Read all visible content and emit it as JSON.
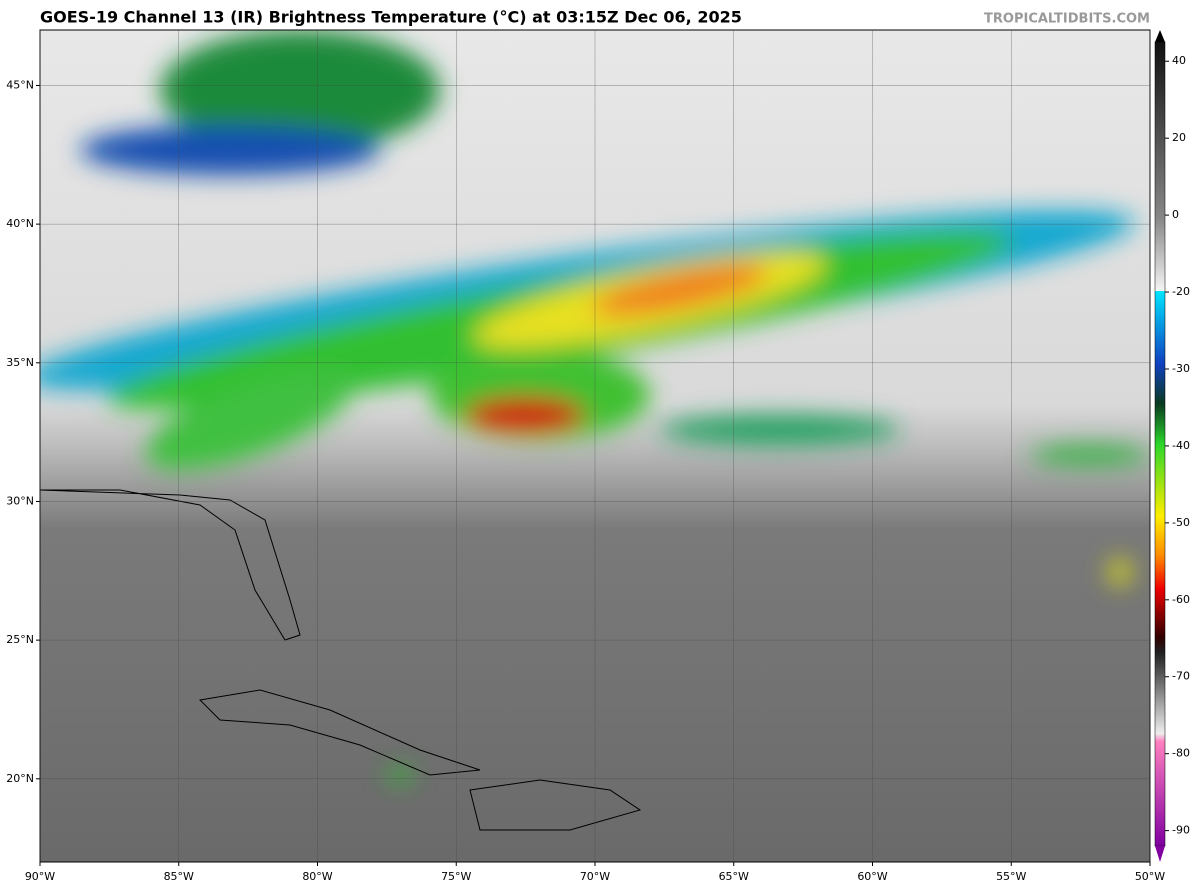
{
  "title": "GOES-19 Channel 13 (IR) Brightness Temperature (°C) at 03:15Z Dec 06, 2025",
  "watermark": "TROPICALTIDBITS.COM",
  "map": {
    "xlim": [
      -90,
      -50
    ],
    "ylim": [
      17,
      47
    ],
    "xticks": [
      {
        "value": -90,
        "label": "90°W"
      },
      {
        "value": -85,
        "label": "85°W"
      },
      {
        "value": -80,
        "label": "80°W"
      },
      {
        "value": -75,
        "label": "75°W"
      },
      {
        "value": -70,
        "label": "70°W"
      },
      {
        "value": -65,
        "label": "65°W"
      },
      {
        "value": -60,
        "label": "60°W"
      },
      {
        "value": -55,
        "label": "55°W"
      },
      {
        "value": -50,
        "label": "50°W"
      }
    ],
    "yticks": [
      {
        "value": 20,
        "label": "20°N"
      },
      {
        "value": 25,
        "label": "25°N"
      },
      {
        "value": 30,
        "label": "30°N"
      },
      {
        "value": 35,
        "label": "35°N"
      },
      {
        "value": 40,
        "label": "40°N"
      },
      {
        "value": 45,
        "label": "45°N"
      }
    ],
    "grid": true
  },
  "colorbar": {
    "clim": [
      -92,
      45
    ],
    "ticks": [
      40,
      20,
      0,
      -20,
      -30,
      -40,
      -50,
      -60,
      -70,
      -80,
      -90
    ]
  }
}
